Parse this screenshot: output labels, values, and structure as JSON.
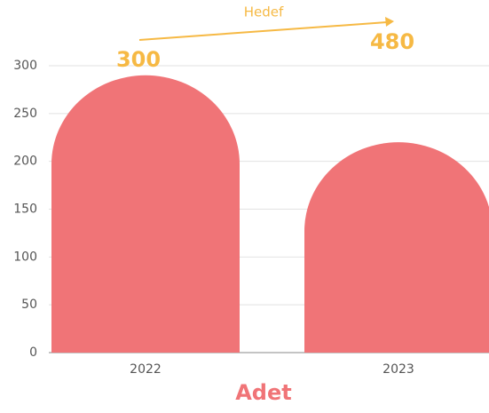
{
  "chart_data": {
    "type": "bar",
    "categories": [
      "2022",
      "2023"
    ],
    "values": [
      290,
      220
    ],
    "color": "#f07477",
    "ylim": [
      0,
      300
    ],
    "yticks": [
      0,
      50,
      100,
      150,
      200,
      250,
      300
    ],
    "grid": true,
    "x_label": "Adet",
    "annotations": {
      "arrow_label": "Hedef",
      "start": "300",
      "end": "480",
      "color": "#f6b944"
    }
  }
}
